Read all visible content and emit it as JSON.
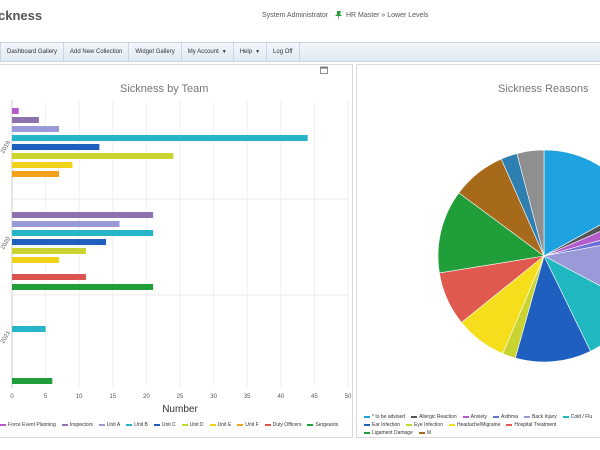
{
  "header": {
    "title": "ckness",
    "user": "System Administrator",
    "hierarchy": "HR Master » Lower Levels"
  },
  "nav": {
    "items": [
      {
        "label": "Dashboard Gallery",
        "dropdown": false
      },
      {
        "label": "Add New Collection",
        "dropdown": false
      },
      {
        "label": "Widget Gallery",
        "dropdown": false
      },
      {
        "label": "My Account",
        "dropdown": true
      },
      {
        "label": "Help",
        "dropdown": true
      },
      {
        "label": "Log Off",
        "dropdown": false
      }
    ]
  },
  "chart_data": [
    {
      "type": "bar",
      "orientation": "horizontal",
      "title": "Sickness by Team",
      "xlabel": "Number",
      "xlim": [
        0,
        50
      ],
      "xticks": [
        0,
        5,
        10,
        15,
        20,
        25,
        30,
        35,
        40,
        45,
        50
      ],
      "category_labels": [
        "2019",
        "2020",
        "2021"
      ],
      "series": [
        {
          "name": "Force Event Planning",
          "color": "#b55bc9",
          "values": [
            1,
            null,
            null
          ]
        },
        {
          "name": "Inspectors",
          "color": "#8e72ad",
          "values": [
            4,
            21,
            null
          ]
        },
        {
          "name": "Unit A",
          "color": "#9a9ad8",
          "values": [
            7,
            16,
            null
          ]
        },
        {
          "name": "Unit B",
          "color": "#26b5c6",
          "values": [
            44,
            21,
            5
          ]
        },
        {
          "name": "Unit C",
          "color": "#1f5fbf",
          "values": [
            13,
            14,
            null
          ]
        },
        {
          "name": "Unit D",
          "color": "#c9d431",
          "values": [
            24,
            11,
            null
          ]
        },
        {
          "name": "Unit E",
          "color": "#f2d31b",
          "values": [
            9,
            7,
            null
          ]
        },
        {
          "name": "Unit F",
          "color": "#f5a21b",
          "values": [
            7,
            null,
            null
          ]
        },
        {
          "name": "Duty Officers",
          "color": "#d9534f",
          "values": [
            null,
            11,
            null
          ]
        },
        {
          "name": "Sergeants",
          "color": "#1f9e3a",
          "values": [
            null,
            21,
            6
          ]
        }
      ],
      "grid": true,
      "legend": "bottom"
    },
    {
      "type": "pie",
      "title": "Sickness Reasons",
      "legend": "bottom",
      "slices": [
        {
          "name": "* to be advised",
          "color": "#1fa3e0",
          "value": 13.6
        },
        {
          "name": "Allergic Reaction",
          "color": "#555555",
          "value": 1.2
        },
        {
          "name": "Anxiety",
          "color": "#b55bc9",
          "value": 1.8
        },
        {
          "name": "Asthma",
          "color": "#6b6fd6",
          "value": 1.1
        },
        {
          "name": "Back Injury",
          "color": "#9a9ad8",
          "value": 8.6
        },
        {
          "name": "Cold / Flu",
          "color": "#20b8c0",
          "value": 8.0
        },
        {
          "name": "Ear Infection",
          "color": "#1f5fbf",
          "value": 9.3
        },
        {
          "name": "Eye Infection",
          "color": "#c9d431",
          "value": 1.6
        },
        {
          "name": "Headache/Migraine",
          "color": "#f5de1b",
          "value": 6.3
        },
        {
          "name": "Hospital Treatment",
          "color": "#e0594f",
          "value": 6.6
        },
        {
          "name": "Ligament Damage",
          "color": "#1f9e3a",
          "value": 10.2
        },
        {
          "name": "M",
          "color": "#a66a1a",
          "value": 6.6
        },
        {
          "name": "",
          "color": "#2f7fb0",
          "value": 2.0
        },
        {
          "name": "",
          "color": "#8f8f8f",
          "value": 3.3
        }
      ]
    }
  ]
}
